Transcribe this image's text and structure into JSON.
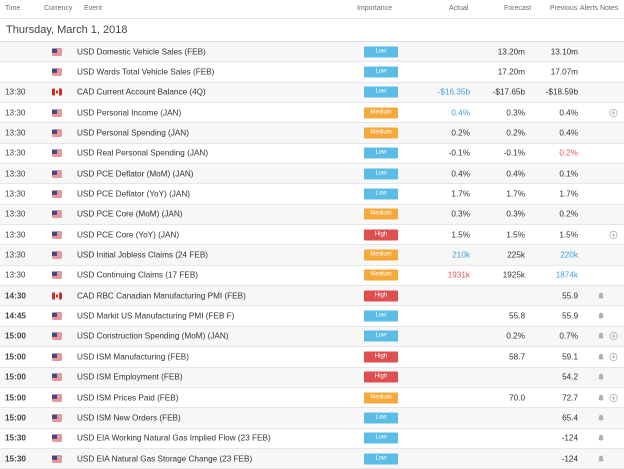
{
  "header": {
    "time": "Time",
    "currency": "Currency",
    "event": "Event",
    "importance": "Importance",
    "actual": "Actual",
    "forecast": "Forecast",
    "previous": "Previous",
    "alerts": "Alerts",
    "notes": "Notes"
  },
  "date": "Thursday, March 1, 2018",
  "rows": [
    {
      "time": "",
      "bold": false,
      "flag": "us",
      "event": "USD Domestic Vehicle Sales (FEB)",
      "importance": "Low",
      "actual": "",
      "actual_color": "",
      "forecast": "13.20m",
      "previous": "13.10m",
      "previous_color": "",
      "bell": false,
      "plus": false
    },
    {
      "time": "",
      "bold": false,
      "flag": "us",
      "event": "USD Wards Total Vehicle Sales (FEB)",
      "importance": "Low",
      "actual": "",
      "actual_color": "",
      "forecast": "17.20m",
      "previous": "17.07m",
      "previous_color": "",
      "bell": false,
      "plus": false
    },
    {
      "time": "13:30",
      "bold": false,
      "flag": "ca",
      "event": "CAD Current Account Balance (4Q)",
      "importance": "Low",
      "actual": "-$16.35b",
      "actual_color": "blue",
      "forecast": "-$17.65b",
      "previous": "-$18.59b",
      "previous_color": "",
      "bell": false,
      "plus": false
    },
    {
      "time": "13:30",
      "bold": false,
      "flag": "us",
      "event": "USD Personal Income (JAN)",
      "importance": "Medium",
      "actual": "0.4%",
      "actual_color": "blue",
      "forecast": "0.3%",
      "previous": "0.4%",
      "previous_color": "",
      "bell": false,
      "plus": true
    },
    {
      "time": "13:30",
      "bold": false,
      "flag": "us",
      "event": "USD Personal Spending (JAN)",
      "importance": "Medium",
      "actual": "0.2%",
      "actual_color": "",
      "forecast": "0.2%",
      "previous": "0.4%",
      "previous_color": "",
      "bell": false,
      "plus": false
    },
    {
      "time": "13:30",
      "bold": false,
      "flag": "us",
      "event": "USD Real Personal Spending (JAN)",
      "importance": "Low",
      "actual": "-0.1%",
      "actual_color": "",
      "forecast": "-0.1%",
      "previous": "0.2%",
      "previous_color": "red",
      "bell": false,
      "plus": false
    },
    {
      "time": "13:30",
      "bold": false,
      "flag": "us",
      "event": "USD PCE Deflator (MoM) (JAN)",
      "importance": "Low",
      "actual": "0.4%",
      "actual_color": "",
      "forecast": "0.4%",
      "previous": "0.1%",
      "previous_color": "",
      "bell": false,
      "plus": false
    },
    {
      "time": "13:30",
      "bold": false,
      "flag": "us",
      "event": "USD PCE Deflator (YoY) (JAN)",
      "importance": "Low",
      "actual": "1.7%",
      "actual_color": "",
      "forecast": "1.7%",
      "previous": "1.7%",
      "previous_color": "",
      "bell": false,
      "plus": false
    },
    {
      "time": "13:30",
      "bold": false,
      "flag": "us",
      "event": "USD PCE Core (MoM) (JAN)",
      "importance": "Medium",
      "actual": "0.3%",
      "actual_color": "",
      "forecast": "0.3%",
      "previous": "0.2%",
      "previous_color": "",
      "bell": false,
      "plus": false
    },
    {
      "time": "13:30",
      "bold": false,
      "flag": "us",
      "event": "USD PCE Core (YoY) (JAN)",
      "importance": "High",
      "actual": "1.5%",
      "actual_color": "",
      "forecast": "1.5%",
      "previous": "1.5%",
      "previous_color": "",
      "bell": false,
      "plus": true
    },
    {
      "time": "13:30",
      "bold": false,
      "flag": "us",
      "event": "USD Initial Jobless Claims (24 FEB)",
      "importance": "Medium",
      "actual": "210k",
      "actual_color": "blue",
      "forecast": "225k",
      "previous": "220k",
      "previous_color": "blue",
      "bell": false,
      "plus": false
    },
    {
      "time": "13:30",
      "bold": false,
      "flag": "us",
      "event": "USD Continuing Claims (17 FEB)",
      "importance": "Medium",
      "actual": "1931k",
      "actual_color": "red",
      "forecast": "1925k",
      "previous": "1874k",
      "previous_color": "blue",
      "bell": false,
      "plus": false
    },
    {
      "time": "14:30",
      "bold": true,
      "flag": "ca",
      "event": "CAD RBC Canadian Manufacturing PMI (FEB)",
      "importance": "High",
      "actual": "",
      "actual_color": "",
      "forecast": "",
      "previous": "55.9",
      "previous_color": "",
      "bell": true,
      "plus": false
    },
    {
      "time": "14:45",
      "bold": true,
      "flag": "us",
      "event": "USD Markit US Manufacturing PMI (FEB F)",
      "importance": "Low",
      "actual": "",
      "actual_color": "",
      "forecast": "55.8",
      "previous": "55.9",
      "previous_color": "",
      "bell": true,
      "plus": false
    },
    {
      "time": "15:00",
      "bold": true,
      "flag": "us",
      "event": "USD Construction Spending (MoM) (JAN)",
      "importance": "Low",
      "actual": "",
      "actual_color": "",
      "forecast": "0.2%",
      "previous": "0.7%",
      "previous_color": "",
      "bell": true,
      "plus": true
    },
    {
      "time": "15:00",
      "bold": true,
      "flag": "us",
      "event": "USD ISM Manufacturing (FEB)",
      "importance": "High",
      "actual": "",
      "actual_color": "",
      "forecast": "58.7",
      "previous": "59.1",
      "previous_color": "",
      "bell": true,
      "plus": true
    },
    {
      "time": "15:00",
      "bold": true,
      "flag": "us",
      "event": "USD ISM Employment (FEB)",
      "importance": "High",
      "actual": "",
      "actual_color": "",
      "forecast": "",
      "previous": "54.2",
      "previous_color": "",
      "bell": true,
      "plus": false
    },
    {
      "time": "15:00",
      "bold": true,
      "flag": "us",
      "event": "USD ISM Prices Paid (FEB)",
      "importance": "Medium",
      "actual": "",
      "actual_color": "",
      "forecast": "70.0",
      "previous": "72.7",
      "previous_color": "",
      "bell": true,
      "plus": true
    },
    {
      "time": "15:00",
      "bold": true,
      "flag": "us",
      "event": "USD ISM New Orders (FEB)",
      "importance": "Low",
      "actual": "",
      "actual_color": "",
      "forecast": "",
      "previous": "65.4",
      "previous_color": "",
      "bell": true,
      "plus": false
    },
    {
      "time": "15:30",
      "bold": true,
      "flag": "us",
      "event": "USD EIA Working Natural Gas Implied Flow (23 FEB)",
      "importance": "Low",
      "actual": "",
      "actual_color": "",
      "forecast": "",
      "previous": "-124",
      "previous_color": "",
      "bell": true,
      "plus": false
    },
    {
      "time": "15:30",
      "bold": true,
      "flag": "us",
      "event": "USD EIA Natural Gas Storage Change (23 FEB)",
      "importance": "Low",
      "actual": "",
      "actual_color": "",
      "forecast": "",
      "previous": "-124",
      "previous_color": "",
      "bell": true,
      "plus": false
    }
  ],
  "icons": {
    "flag_us": "us-flag-icon",
    "flag_ca": "canada-flag-icon",
    "bell": "bell-icon",
    "plus": "add-note-icon"
  },
  "colors": {
    "low": "#5bbde6",
    "medium": "#f4a93a",
    "high": "#de5050",
    "better": "#3ea0dd",
    "worse": "#e05555"
  }
}
